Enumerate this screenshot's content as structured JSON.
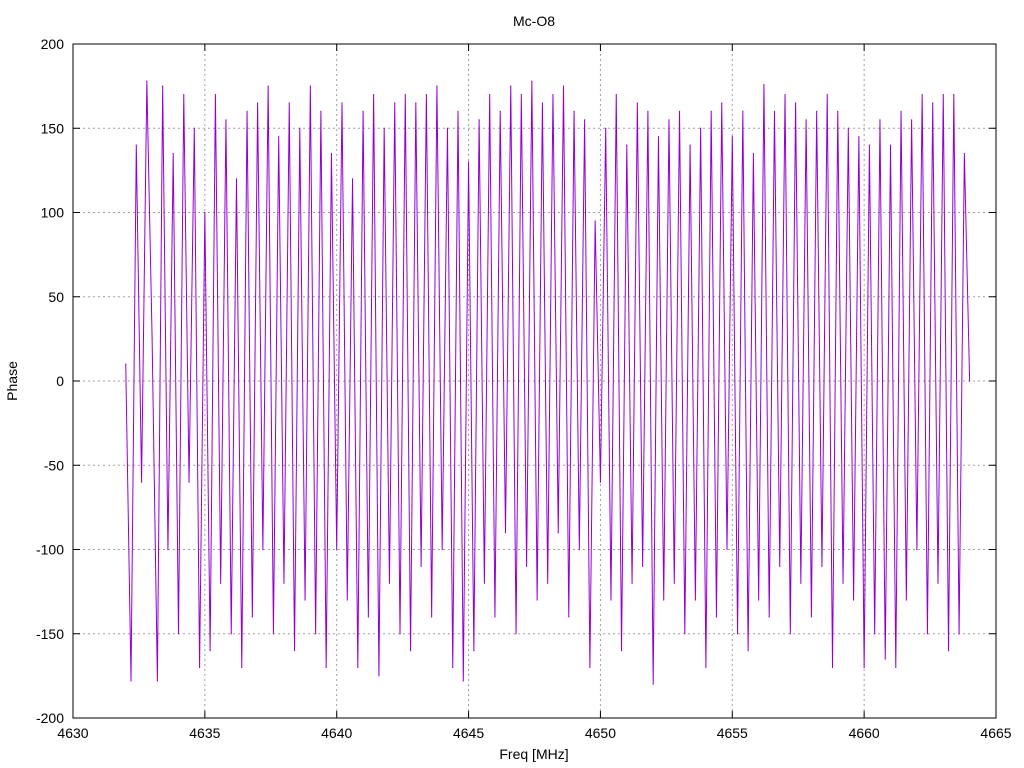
{
  "chart_data": {
    "type": "line",
    "title": "Mc-O8",
    "xlabel": "Freq [MHz]",
    "ylabel": "Phase",
    "xlim": [
      4630,
      4665
    ],
    "ylim": [
      -200,
      200
    ],
    "x_ticks": [
      4630,
      4635,
      4640,
      4645,
      4650,
      4655,
      4660,
      4665
    ],
    "y_ticks": [
      -200,
      -150,
      -100,
      -50,
      0,
      50,
      100,
      150,
      200
    ],
    "grid": true,
    "legend": "none",
    "series": [
      {
        "color": "#9400d3",
        "x": [
          4632.0,
          4632.2,
          4632.4,
          4632.6,
          4632.8,
          4633.0,
          4633.2,
          4633.4,
          4633.6,
          4633.8,
          4634.0,
          4634.2,
          4634.4,
          4634.6,
          4634.8,
          4635.0,
          4635.2,
          4635.4,
          4635.6,
          4635.8,
          4636.0,
          4636.2,
          4636.4,
          4636.6,
          4636.8,
          4637.0,
          4637.2,
          4637.4,
          4637.6,
          4637.8,
          4638.0,
          4638.2,
          4638.4,
          4638.6,
          4638.8,
          4639.0,
          4639.2,
          4639.4,
          4639.6,
          4639.8,
          4640.0,
          4640.2,
          4640.4,
          4640.6,
          4640.8,
          4641.0,
          4641.2,
          4641.4,
          4641.6,
          4641.8,
          4642.0,
          4642.2,
          4642.4,
          4642.6,
          4642.8,
          4643.0,
          4643.2,
          4643.4,
          4643.6,
          4643.8,
          4644.0,
          4644.2,
          4644.4,
          4644.6,
          4644.8,
          4645.0,
          4645.2,
          4645.4,
          4645.6,
          4645.8,
          4646.0,
          4646.2,
          4646.4,
          4646.6,
          4646.8,
          4647.0,
          4647.2,
          4647.4,
          4647.6,
          4647.8,
          4648.0,
          4648.2,
          4648.4,
          4648.6,
          4648.8,
          4649.0,
          4649.2,
          4649.4,
          4649.6,
          4649.8,
          4650.0,
          4650.2,
          4650.4,
          4650.6,
          4650.8,
          4651.0,
          4651.2,
          4651.4,
          4651.6,
          4651.8,
          4652.0,
          4652.2,
          4652.4,
          4652.6,
          4652.8,
          4653.0,
          4653.2,
          4653.4,
          4653.6,
          4653.8,
          4654.0,
          4654.2,
          4654.4,
          4654.6,
          4654.8,
          4655.0,
          4655.2,
          4655.4,
          4655.6,
          4655.8,
          4656.0,
          4656.2,
          4656.4,
          4656.6,
          4656.8,
          4657.0,
          4657.2,
          4657.4,
          4657.6,
          4657.8,
          4658.0,
          4658.2,
          4658.4,
          4658.6,
          4658.8,
          4659.0,
          4659.2,
          4659.4,
          4659.6,
          4659.8,
          4660.0,
          4660.2,
          4660.4,
          4660.6,
          4660.8,
          4661.0,
          4661.2,
          4661.4,
          4661.6,
          4661.8,
          4662.0,
          4662.2,
          4662.4,
          4662.6,
          4662.8,
          4663.0,
          4663.2,
          4663.4,
          4663.6,
          4663.8,
          4664.0
        ],
        "y": [
          10,
          -178,
          140,
          -60,
          178,
          25,
          -178,
          175,
          -100,
          135,
          -150,
          170,
          -60,
          150,
          -170,
          100,
          -160,
          170,
          -120,
          155,
          -150,
          120,
          -170,
          160,
          -140,
          165,
          -100,
          175,
          -150,
          145,
          -120,
          165,
          -160,
          150,
          -130,
          175,
          -150,
          160,
          -170,
          135,
          -100,
          165,
          -130,
          120,
          -170,
          160,
          -140,
          170,
          -175,
          150,
          -120,
          165,
          -150,
          170,
          -160,
          165,
          -110,
          170,
          -140,
          175,
          -100,
          150,
          -170,
          160,
          -178,
          130,
          -160,
          155,
          -120,
          170,
          -140,
          160,
          -90,
          175,
          -150,
          170,
          -110,
          178,
          -130,
          165,
          -120,
          170,
          -90,
          175,
          -140,
          160,
          -100,
          155,
          -170,
          95,
          -60,
          150,
          -130,
          170,
          -160,
          140,
          -120,
          165,
          -110,
          160,
          -180,
          145,
          -130,
          155,
          -120,
          160,
          -150,
          140,
          -130,
          150,
          -170,
          160,
          -140,
          165,
          -100,
          145,
          -150,
          160,
          -160,
          135,
          -130,
          176,
          -140,
          160,
          -110,
          170,
          -150,
          165,
          -120,
          155,
          -140,
          160,
          -110,
          170,
          -170,
          160,
          -120,
          150,
          -130,
          145,
          -170,
          140,
          -150,
          155,
          -165,
          140,
          -170,
          160,
          -130,
          155,
          -100,
          170,
          -150,
          165,
          -120,
          170,
          -160,
          170,
          -150,
          135,
          0
        ]
      }
    ]
  }
}
